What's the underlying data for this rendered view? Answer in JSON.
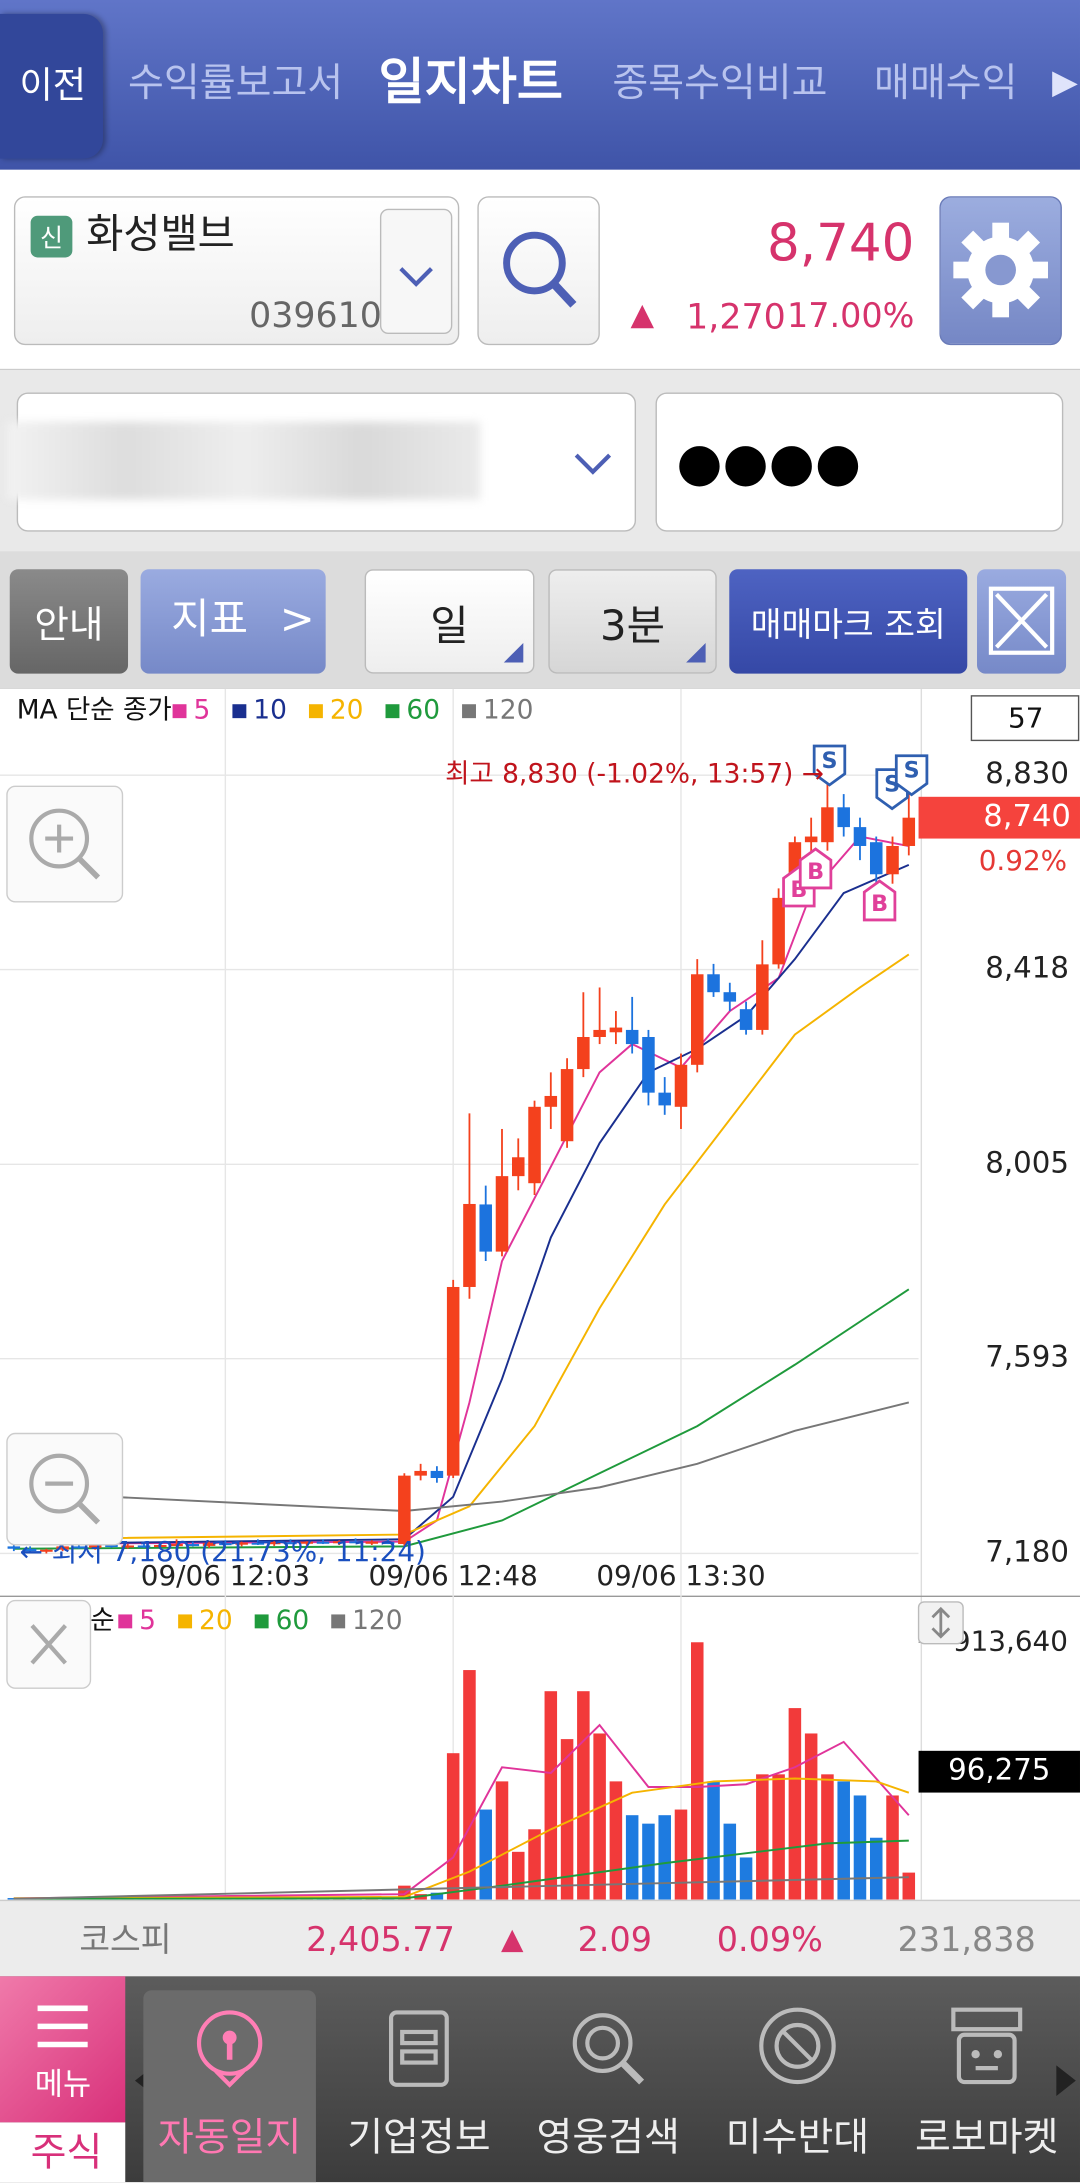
{
  "header": {
    "back": "이전",
    "tabs": [
      "수익률보고서",
      "일지차트",
      "종목수익비교",
      "매매수익"
    ],
    "more": "▶"
  },
  "stock": {
    "badge": "신",
    "name": "화성밸브",
    "code": "039610",
    "price": "8,740",
    "change_arrow": "▲",
    "change": "1,270",
    "change_rate": "17.00%"
  },
  "account": {
    "password": "●●●●"
  },
  "toolbar": {
    "guide": "안내",
    "indicator": "지표",
    "indicator_arrow": ">",
    "period": "일",
    "interval": "3분",
    "trade_marks": "매매마크 조회"
  },
  "chart": {
    "type": "candlestick",
    "legend_title": "MA 단순 종가",
    "up_color": "#f4411d",
    "down_color": "#1c73de",
    "ma": [
      {
        "name": "5",
        "color": "#e0349a",
        "x": [
          0,
          24,
          26,
          28,
          30,
          33,
          36,
          38,
          41,
          44,
          47,
          49,
          52,
          55
        ],
        "values": [
          7200,
          7205,
          7250,
          7500,
          7800,
          8000,
          8200,
          8260,
          8210,
          8330,
          8400,
          8580,
          8700,
          8680
        ]
      },
      {
        "name": "10",
        "color": "#1a2f8f",
        "x": [
          0,
          24,
          27,
          30,
          33,
          36,
          39,
          42,
          45,
          48,
          51,
          55
        ],
        "values": [
          7200,
          7210,
          7300,
          7550,
          7850,
          8050,
          8200,
          8250,
          8320,
          8440,
          8580,
          8640
        ]
      },
      {
        "name": "20",
        "color": "#f5b400",
        "x": [
          0,
          24,
          28,
          32,
          36,
          40,
          44,
          48,
          52,
          55
        ],
        "values": [
          7210,
          7220,
          7280,
          7450,
          7700,
          7920,
          8100,
          8280,
          8380,
          8450
        ]
      },
      {
        "name": "60",
        "color": "#1f9a3c",
        "x": [
          0,
          24,
          30,
          36,
          42,
          48,
          55
        ],
        "values": [
          7190,
          7195,
          7250,
          7350,
          7450,
          7580,
          7740
        ]
      },
      {
        "name": "120",
        "color": "#777777",
        "x": [
          0,
          24,
          30,
          36,
          42,
          48,
          55
        ],
        "values": [
          7310,
          7270,
          7290,
          7320,
          7370,
          7440,
          7500
        ]
      }
    ],
    "candles": [
      [
        7195,
        7200,
        7185,
        7190
      ],
      [
        7190,
        7195,
        7180,
        7185
      ],
      [
        7185,
        7190,
        7180,
        7188
      ],
      [
        7188,
        7200,
        7185,
        7195
      ],
      [
        7195,
        7205,
        7190,
        7192
      ],
      [
        7192,
        7200,
        7188,
        7198
      ],
      [
        7198,
        7205,
        7192,
        7195
      ],
      [
        7195,
        7200,
        7190,
        7197
      ],
      [
        7197,
        7205,
        7192,
        7194
      ],
      [
        7194,
        7200,
        7190,
        7198
      ],
      [
        7198,
        7210,
        7195,
        7200
      ],
      [
        7200,
        7205,
        7195,
        7196
      ],
      [
        7196,
        7205,
        7192,
        7202
      ],
      [
        7202,
        7208,
        7198,
        7199
      ],
      [
        7199,
        7205,
        7195,
        7203
      ],
      [
        7203,
        7210,
        7198,
        7200
      ],
      [
        7200,
        7206,
        7196,
        7204
      ],
      [
        7204,
        7210,
        7200,
        7201
      ],
      [
        7201,
        7206,
        7197,
        7205
      ],
      [
        7205,
        7210,
        7200,
        7202
      ],
      [
        7202,
        7208,
        7198,
        7206
      ],
      [
        7206,
        7212,
        7202,
        7203
      ],
      [
        7203,
        7208,
        7198,
        7205
      ],
      [
        7205,
        7210,
        7200,
        7200
      ],
      [
        7200,
        7350,
        7195,
        7345
      ],
      [
        7345,
        7370,
        7335,
        7355
      ],
      [
        7355,
        7365,
        7330,
        7340
      ],
      [
        7345,
        7760,
        7340,
        7745
      ],
      [
        7745,
        8113,
        7720,
        7921
      ],
      [
        7920,
        7960,
        7800,
        7820
      ],
      [
        7820,
        8080,
        7810,
        7980
      ],
      [
        7980,
        8060,
        7950,
        8020
      ],
      [
        7965,
        8140,
        7940,
        8127
      ],
      [
        8127,
        8200,
        8080,
        8150
      ],
      [
        8054,
        8230,
        8040,
        8207
      ],
      [
        8207,
        8370,
        8190,
        8275
      ],
      [
        8275,
        8380,
        8260,
        8290
      ],
      [
        8285,
        8330,
        8260,
        8295
      ],
      [
        8290,
        8360,
        8240,
        8260
      ],
      [
        8275,
        8290,
        8130,
        8157
      ],
      [
        8157,
        8190,
        8110,
        8130
      ],
      [
        8127,
        8240,
        8080,
        8216
      ],
      [
        8216,
        8440,
        8200,
        8408
      ],
      [
        8408,
        8430,
        8360,
        8370
      ],
      [
        8370,
        8390,
        8330,
        8350
      ],
      [
        8334,
        8350,
        8280,
        8290
      ],
      [
        8290,
        8480,
        8280,
        8429
      ],
      [
        8429,
        8590,
        8420,
        8570
      ],
      [
        8570,
        8700,
        8560,
        8688
      ],
      [
        8688,
        8740,
        8660,
        8700
      ],
      [
        8688,
        8830,
        8670,
        8762
      ],
      [
        8762,
        8790,
        8700,
        8720
      ],
      [
        8720,
        8740,
        8650,
        8680
      ],
      [
        8688,
        8700,
        8600,
        8620
      ],
      [
        8620,
        8700,
        8600,
        8680
      ],
      [
        8680,
        8800,
        8660,
        8740
      ]
    ],
    "xlim": [
      -0.85,
      55.6
    ],
    "ylim": [
      7095,
      9013
    ],
    "yticks": [
      {
        "value": 8830,
        "label": "8,830"
      },
      {
        "value": 8418,
        "label": "8,418"
      },
      {
        "value": 8005,
        "label": "8,005"
      },
      {
        "value": 7593,
        "label": "7,593"
      },
      {
        "value": 7180,
        "label": "7,180"
      }
    ],
    "xticks": [
      {
        "value": 13,
        "label": "09/06 12:03"
      },
      {
        "value": 27,
        "label": "09/06 12:48"
      },
      {
        "value": 41,
        "label": "09/06 13:30"
      }
    ],
    "grid": true,
    "high_note": "최고 8,830 (-1.02%, 13:57) →",
    "low_note": "← 최저 7,180 (21.73%, 11:24)",
    "current_price": {
      "value": 8740,
      "label": "8,740"
    },
    "current_change": "0.92%",
    "period_count": "57",
    "sell_mark": "S",
    "buy_mark": "B",
    "volume": {
      "legend_title": "MA 단순",
      "up_color": "#f23a3a",
      "down_color": "#1e7be0",
      "values": [
        6000,
        4000,
        5000,
        7000,
        3000,
        5000,
        4000,
        6000,
        3000,
        5000,
        8000,
        4000,
        6000,
        3000,
        5000,
        7000,
        4000,
        5000,
        3000,
        6000,
        4000,
        5000,
        3000,
        10000,
        50000,
        20000,
        25000,
        520000,
        815000,
        320000,
        420000,
        170000,
        250000,
        740000,
        570000,
        740000,
        590000,
        420000,
        300000,
        270000,
        300000,
        320000,
        913640,
        420000,
        270000,
        150000,
        445000,
        445000,
        680000,
        590000,
        445000,
        420000,
        370000,
        220000,
        370000,
        96275
      ],
      "ma": [
        {
          "name": "5",
          "color": "#e0349a",
          "x": [
            0,
            24,
            27,
            30,
            33,
            36,
            39,
            42,
            45,
            48,
            51,
            55
          ],
          "values": [
            5000,
            20000,
            150000,
            470000,
            450000,
            620000,
            400000,
            400000,
            410000,
            470000,
            560000,
            300000
          ]
        },
        {
          "name": "20",
          "color": "#f5b400",
          "x": [
            0,
            24,
            28,
            33,
            38,
            43,
            48,
            53,
            55
          ],
          "values": [
            5000,
            10000,
            100000,
            250000,
            380000,
            420000,
            430000,
            420000,
            380000
          ]
        },
        {
          "name": "60",
          "color": "#1f9a3c",
          "x": [
            0,
            24,
            30,
            40,
            50,
            55
          ],
          "values": [
            3000,
            5000,
            50000,
            130000,
            200000,
            210000
          ]
        },
        {
          "name": "120",
          "color": "#777777",
          "x": [
            0,
            55
          ],
          "values": [
            3000,
            80000
          ]
        }
      ],
      "ylim": [
        0,
        1061800
      ],
      "yticks": [
        {
          "value": 913640,
          "label": "913,640"
        }
      ],
      "last_label": "96,275"
    }
  },
  "index_bar": {
    "name": "코스피",
    "value": "2,405.77",
    "arrow": "▲",
    "change": "2.09",
    "rate": "0.09%",
    "volume": "231,838"
  },
  "nav": {
    "menu": "메뉴",
    "home": "주식",
    "items": [
      "자동일지",
      "기업정보",
      "영웅검색",
      "미수반대",
      "로보마켓"
    ]
  }
}
